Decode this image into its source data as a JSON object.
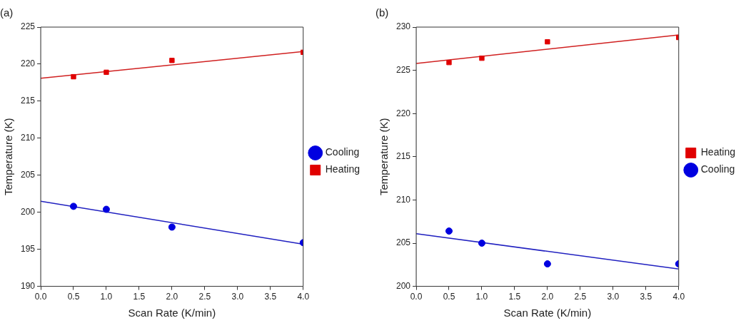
{
  "chart_data": [
    {
      "type": "scatter",
      "title": "(a)",
      "xlabel": "Scan Rate (K/min)",
      "ylabel": "Temperature (K)",
      "xlim": [
        0,
        4
      ],
      "xticks": [
        {
          "value": 0,
          "label": "0.0"
        },
        {
          "value": 0.5,
          "label": "0.5"
        },
        {
          "value": 1,
          "label": "1.0"
        },
        {
          "value": 1.5,
          "label": "1.5"
        },
        {
          "value": 2,
          "label": "2.0"
        },
        {
          "value": 2.5,
          "label": "2.5"
        },
        {
          "value": 3,
          "label": "3.0"
        },
        {
          "value": 3.5,
          "label": "3.5"
        },
        {
          "value": 4,
          "label": "4.0"
        }
      ],
      "ylim": [
        190,
        225
      ],
      "yticks": [
        190,
        195,
        200,
        205,
        210,
        215,
        220,
        225
      ],
      "legend": "right",
      "grid": false,
      "series": [
        {
          "name": "Cooling",
          "color": "#0000e0",
          "marker": "circle",
          "x": [
            0.5,
            1,
            2,
            4
          ],
          "values": [
            200.8,
            200.4,
            198.0,
            195.9
          ]
        },
        {
          "name": "Heating",
          "color": "#e00000",
          "marker": "square",
          "x": [
            0.5,
            1,
            2,
            4
          ],
          "values": [
            218.3,
            218.9,
            220.5,
            221.6
          ]
        },
        {
          "type": "line",
          "color": "#2020c0",
          "marker": "none",
          "x": [
            0,
            4
          ],
          "values": [
            201.5,
            195.7
          ]
        },
        {
          "type": "line",
          "color": "#d02020",
          "marker": "none",
          "x": [
            0,
            4
          ],
          "values": [
            218.1,
            221.7
          ]
        }
      ]
    },
    {
      "type": "scatter",
      "title": "(b)",
      "xlabel": "Scan Rate (K/min)",
      "ylabel": "Temperature (K)",
      "xlim": [
        0,
        4
      ],
      "xticks": [
        {
          "value": 0,
          "label": "0.0"
        },
        {
          "value": 0.5,
          "label": "0.5"
        },
        {
          "value": 1,
          "label": "1.0"
        },
        {
          "value": 1.5,
          "label": "1.5"
        },
        {
          "value": 2,
          "label": "2.0"
        },
        {
          "value": 2.5,
          "label": "2.5"
        },
        {
          "value": 3,
          "label": "3.0"
        },
        {
          "value": 3.5,
          "label": "3.5"
        },
        {
          "value": 4,
          "label": "4.0"
        }
      ],
      "ylim": [
        200,
        230
      ],
      "yticks": [
        200,
        205,
        210,
        215,
        220,
        225,
        230
      ],
      "legend": "right",
      "grid": false,
      "series": [
        {
          "name": "Heating",
          "color": "#e00000",
          "marker": "square",
          "x": [
            0.5,
            1,
            2,
            4
          ],
          "values": [
            225.9,
            226.4,
            228.3,
            228.8
          ]
        },
        {
          "name": "Cooling",
          "color": "#0000e0",
          "marker": "circle",
          "x": [
            0.5,
            1,
            2,
            4
          ],
          "values": [
            206.4,
            205.0,
            202.6,
            202.6
          ]
        },
        {
          "type": "line",
          "color": "#d02020",
          "marker": "none",
          "x": [
            0,
            4
          ],
          "values": [
            225.8,
            229.1
          ]
        },
        {
          "type": "line",
          "color": "#2020c0",
          "marker": "none",
          "x": [
            0,
            4
          ],
          "values": [
            206.1,
            202.0
          ]
        }
      ]
    }
  ]
}
